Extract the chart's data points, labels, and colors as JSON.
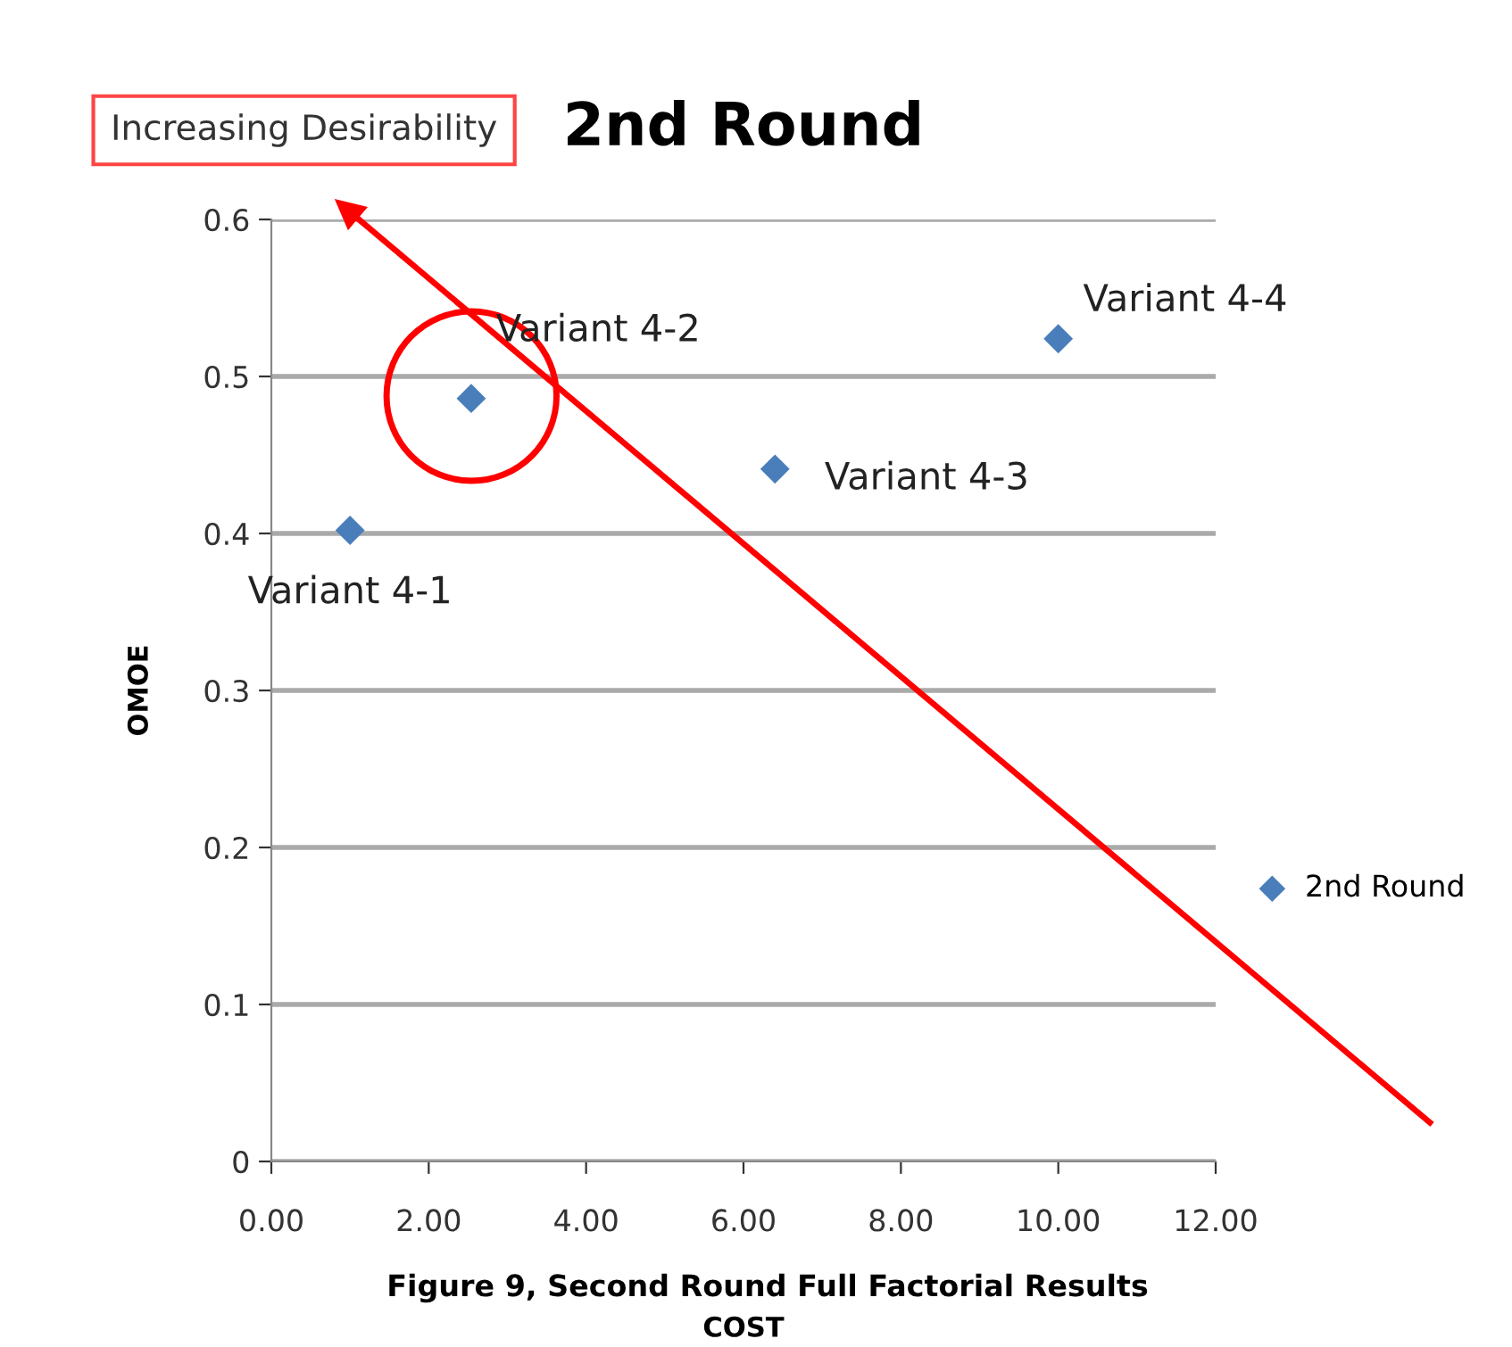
{
  "chart_data": {
    "type": "scatter",
    "title": "2nd Round",
    "xlabel": "COST",
    "ylabel": "OMOE",
    "x": [
      1.0,
      2.54,
      6.4,
      10.0
    ],
    "series": [
      {
        "name": "2nd Round",
        "color": "#4a7ebb",
        "values": [
          0.402,
          0.486,
          0.441,
          0.524
        ]
      }
    ],
    "xlim": [
      0,
      12
    ],
    "ylim": [
      0,
      0.6
    ],
    "xticks": [
      {
        "value": 0,
        "label": "0.00"
      },
      {
        "value": 2,
        "label": "2.00"
      },
      {
        "value": 4,
        "label": "4.00"
      },
      {
        "value": 6,
        "label": "6.00"
      },
      {
        "value": 8,
        "label": "8.00"
      },
      {
        "value": 10,
        "label": "10.00"
      },
      {
        "value": 12,
        "label": "12.00"
      }
    ],
    "yticks": [
      0,
      0.1,
      0.2,
      0.3,
      0.4,
      0.5,
      0.6
    ],
    "grid": "y",
    "legend": "right",
    "marker": "diamond",
    "annotations": [
      {
        "text": "Variant 4-1",
        "x": 1.0,
        "y": 0.402
      },
      {
        "text": "Variant 4-2",
        "x": 2.54,
        "y": 0.486
      },
      {
        "text": "Variant 4-3",
        "x": 6.4,
        "y": 0.441
      },
      {
        "text": "Variant 4-4",
        "x": 10.0,
        "y": 0.524
      },
      "Increasing Desirability",
      "Figure 9, Second Round Full Factorial Results"
    ]
  }
}
